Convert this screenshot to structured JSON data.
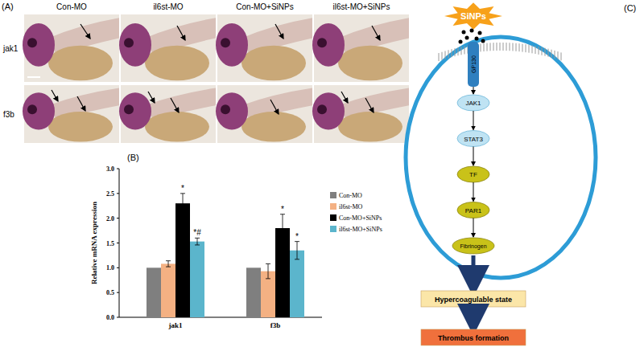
{
  "panel_a": {
    "label": "(A)",
    "column_labels": [
      "Con-MO",
      "il6st-MO",
      "Con-MO+SiNPs",
      "il6st-MO+SiNPs"
    ],
    "row_labels": [
      "jak1",
      "f3b"
    ]
  },
  "chart_data": {
    "type": "bar",
    "panel_label": "(B)",
    "y_label": "Relative mRNA expression",
    "categories": [
      "jak1",
      "f3b"
    ],
    "series": [
      {
        "name": "Con-MO",
        "color": "#7f7f7f",
        "values": [
          1.0,
          1.0
        ],
        "errors": [
          0,
          0
        ],
        "significance": [
          null,
          null
        ]
      },
      {
        "name": "il6st-MO",
        "color": "#f4b183",
        "values": [
          1.08,
          0.93
        ],
        "errors": [
          0.06,
          0.15
        ],
        "significance": [
          null,
          null
        ]
      },
      {
        "name": "Con-MO+SiNPs",
        "color": "#000000",
        "values": [
          2.3,
          1.8
        ],
        "errors": [
          0.2,
          0.28
        ],
        "significance": [
          "*",
          "*"
        ]
      },
      {
        "name": "il6st-MO+SiNPs",
        "color": "#5bb5cc",
        "values": [
          1.53,
          1.35
        ],
        "errors": [
          0.07,
          0.18
        ],
        "significance": [
          "*#",
          "*"
        ]
      }
    ],
    "ylim": [
      0,
      3
    ],
    "yticks": [
      {
        "value": 0,
        "label": "0.0"
      },
      {
        "value": 0.5,
        "label": "0.5"
      },
      {
        "value": 1,
        "label": "1.0"
      },
      {
        "value": 1.5,
        "label": "1.5"
      },
      {
        "value": 2,
        "label": "2.0"
      },
      {
        "value": 2.5,
        "label": "2.5"
      },
      {
        "value": 3,
        "label": "3.0"
      }
    ],
    "grid": false,
    "legend": "right"
  },
  "diagram": {
    "label": "(C)",
    "stimulus": "SiNPs",
    "receptor": "GP130",
    "pathway": [
      "JAK1",
      "STAT3",
      "TF",
      "PAR1",
      "Fibrinogen"
    ],
    "outcomes": [
      "Hypercoagulable state",
      "Thrombus formation"
    ]
  }
}
